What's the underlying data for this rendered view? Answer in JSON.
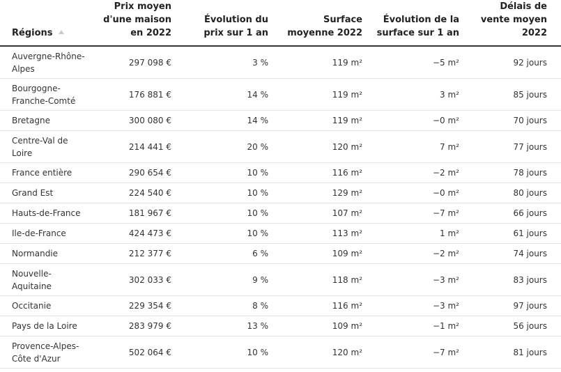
{
  "table": {
    "headers": {
      "region": "Régions",
      "price_l1": "Prix moyen",
      "price_l2": "d'une maison",
      "price_l3": "en 2022",
      "price_evo_l1": "Évolution du",
      "price_evo_l2": "prix sur 1 an",
      "surface_l1": "Surface",
      "surface_l2": "moyenne 2022",
      "surface_evo_l1": "Évolution de la",
      "surface_evo_l2": "surface sur 1 an",
      "delay_l1": "Délais de",
      "delay_l2": "vente moyen",
      "delay_l3": "2022"
    },
    "sort_icon": "sort-ascending-icon",
    "rows": [
      {
        "region_l1": "Auvergne-Rhône-",
        "region_l2": "Alpes",
        "price": "297 098 €",
        "price_evo": "3 %",
        "surface": "119 m²",
        "surface_evo": "−5 m²",
        "delay": "92 jours"
      },
      {
        "region_l1": "Bourgogne-",
        "region_l2": "Franche-Comté",
        "price": "176 881 €",
        "price_evo": "14 %",
        "surface": "119 m²",
        "surface_evo": "3 m²",
        "delay": "85 jours"
      },
      {
        "region_l1": "Bretagne",
        "price": "300 080 €",
        "price_evo": "14 %",
        "surface": "119 m²",
        "surface_evo": "−0 m²",
        "delay": "70 jours"
      },
      {
        "region_l1": "Centre-Val de",
        "region_l2": "Loire",
        "price": "214 441 €",
        "price_evo": "20 %",
        "surface": "120 m²",
        "surface_evo": "7 m²",
        "delay": "77 jours"
      },
      {
        "region_l1": "France entière",
        "price": "290 654 €",
        "price_evo": "10 %",
        "surface": "116 m²",
        "surface_evo": "−2 m²",
        "delay": "78 jours"
      },
      {
        "region_l1": "Grand Est",
        "price": "224 540 €",
        "price_evo": "10 %",
        "surface": "129 m²",
        "surface_evo": "−0 m²",
        "delay": "80 jours"
      },
      {
        "region_l1": "Hauts-de-France",
        "price": "181 967 €",
        "price_evo": "10 %",
        "surface": "107 m²",
        "surface_evo": "−7 m²",
        "delay": "66 jours"
      },
      {
        "region_l1": "Ile-de-France",
        "price": "424 473 €",
        "price_evo": "10 %",
        "surface": "113 m²",
        "surface_evo": "1 m²",
        "delay": "61 jours"
      },
      {
        "region_l1": "Normandie",
        "price": "212 377 €",
        "price_evo": "6 %",
        "surface": "109 m²",
        "surface_evo": "−2 m²",
        "delay": "74 jours"
      },
      {
        "region_l1": "Nouvelle-",
        "region_l2": "Aquitaine",
        "price": "302 033 €",
        "price_evo": "9 %",
        "surface": "118 m²",
        "surface_evo": "−3 m²",
        "delay": "83 jours"
      },
      {
        "region_l1": "Occitanie",
        "price": "229 354 €",
        "price_evo": "8 %",
        "surface": "116 m²",
        "surface_evo": "−3 m²",
        "delay": "97 jours"
      },
      {
        "region_l1": "Pays de la Loire",
        "price": "283 979 €",
        "price_evo": "13 %",
        "surface": "109 m²",
        "surface_evo": "−1 m²",
        "delay": "56 jours"
      },
      {
        "region_l1": "Provence-Alpes-",
        "region_l2": "Côte d'Azur",
        "price": "502 064 €",
        "price_evo": "10 %",
        "surface": "120 m²",
        "surface_evo": "−7 m²",
        "delay": "81 jours"
      }
    ]
  }
}
